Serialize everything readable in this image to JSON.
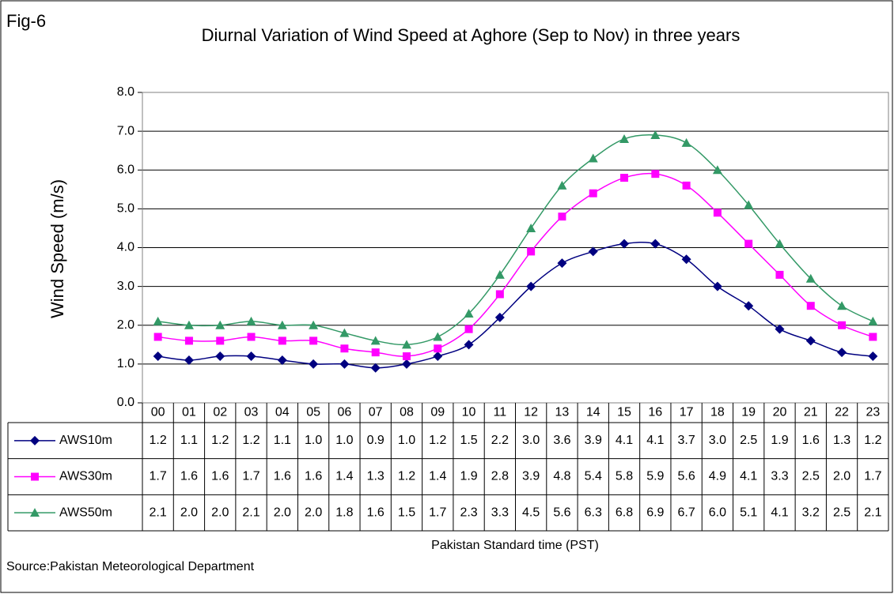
{
  "chart_data": {
    "type": "line",
    "annotation": "Fig-6",
    "title": "Diurnal Variation of Wind Speed at Aghore (Sep to Nov) in three years",
    "y_label": "Wind Speed (m/s)",
    "x_label": "Pakistan Standard time (PST)",
    "source": "Source:Pakistan Meteorological Department",
    "categories": [
      "00",
      "01",
      "02",
      "03",
      "04",
      "05",
      "06",
      "07",
      "08",
      "09",
      "10",
      "11",
      "12",
      "13",
      "14",
      "15",
      "16",
      "17",
      "18",
      "19",
      "20",
      "21",
      "22",
      "23"
    ],
    "series": [
      {
        "name": "AWS10m",
        "color": "#000080",
        "marker": "diamond",
        "values": [
          1.2,
          1.1,
          1.2,
          1.2,
          1.1,
          1.0,
          1.0,
          0.9,
          1.0,
          1.2,
          1.5,
          2.2,
          3.0,
          3.6,
          3.9,
          4.1,
          4.1,
          3.7,
          3.0,
          2.5,
          1.9,
          1.6,
          1.3,
          1.2
        ],
        "value_labels": [
          "1.2",
          "1.1",
          "1.2",
          "1.2",
          "1.1",
          "1.0",
          "1.0",
          "0.9",
          "1.0",
          "1.2",
          "1.5",
          "2.2",
          "3.0",
          "3.6",
          "3.9",
          "4.1",
          "4.1",
          "3.7",
          "3.0",
          "2.5",
          "1.9",
          "1.6",
          "1.3",
          "1.2"
        ]
      },
      {
        "name": "AWS30m",
        "color": "#ff00ff",
        "marker": "square",
        "values": [
          1.7,
          1.6,
          1.6,
          1.7,
          1.6,
          1.6,
          1.4,
          1.3,
          1.2,
          1.4,
          1.9,
          2.8,
          3.9,
          4.8,
          5.4,
          5.8,
          5.9,
          5.6,
          4.9,
          4.1,
          3.3,
          2.5,
          2.0,
          1.7
        ],
        "value_labels": [
          "1.7",
          "1.6",
          "1.6",
          "1.7",
          "1.6",
          "1.6",
          "1.4",
          "1.3",
          "1.2",
          "1.4",
          "1.9",
          "2.8",
          "3.9",
          "4.8",
          "5.4",
          "5.8",
          "5.9",
          "5.6",
          "4.9",
          "4.1",
          "3.3",
          "2.5",
          "2.0",
          "1.7"
        ]
      },
      {
        "name": "AWS50m",
        "color": "#339966",
        "marker": "triangle",
        "values": [
          2.1,
          2.0,
          2.0,
          2.1,
          2.0,
          2.0,
          1.8,
          1.6,
          1.5,
          1.7,
          2.3,
          3.3,
          4.5,
          5.6,
          6.3,
          6.8,
          6.9,
          6.7,
          6.0,
          5.1,
          4.1,
          3.2,
          2.5,
          2.1
        ],
        "value_labels": [
          "2.1",
          "2.0",
          "2.0",
          "2.1",
          "2.0",
          "2.0",
          "1.8",
          "1.6",
          "1.5",
          "1.7",
          "2.3",
          "3.3",
          "4.5",
          "5.6",
          "6.3",
          "6.8",
          "6.9",
          "6.7",
          "6.0",
          "5.1",
          "4.1",
          "3.2",
          "2.5",
          "2.1"
        ]
      }
    ],
    "ylim": [
      0,
      8
    ],
    "yticks": [
      {
        "value": 0,
        "label": "0.0"
      },
      {
        "value": 1,
        "label": "1.0"
      },
      {
        "value": 2,
        "label": "2.0"
      },
      {
        "value": 3,
        "label": "3.0"
      },
      {
        "value": 4,
        "label": "4.0"
      },
      {
        "value": 5,
        "label": "5.0"
      },
      {
        "value": 6,
        "label": "6.0"
      },
      {
        "value": 7,
        "label": "7.0"
      },
      {
        "value": 8,
        "label": "8.0"
      }
    ],
    "grid": true,
    "smooth": true
  }
}
